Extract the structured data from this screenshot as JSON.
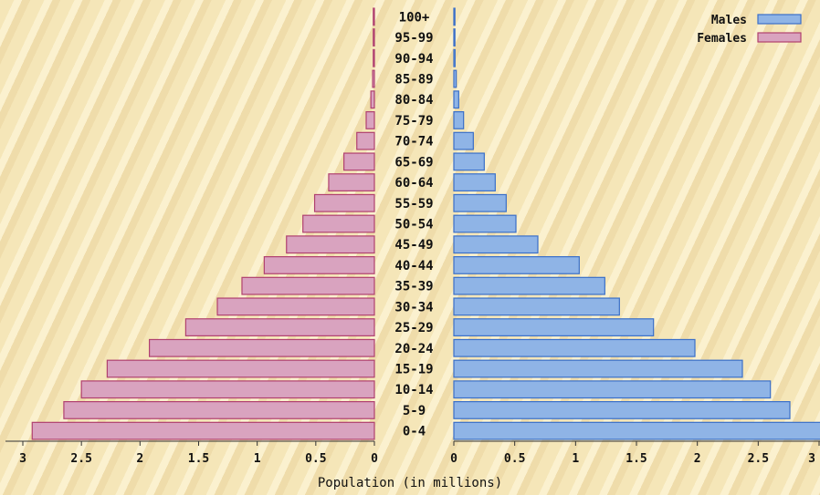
{
  "chart_data": {
    "type": "bar",
    "orientation": "horizontal-pyramid",
    "categories": [
      "0-4",
      "5-9",
      "10-14",
      "15-19",
      "20-24",
      "25-29",
      "30-34",
      "35-39",
      "40-44",
      "45-49",
      "50-54",
      "55-59",
      "60-64",
      "65-69",
      "70-74",
      "75-79",
      "80-84",
      "85-89",
      "90-94",
      "95-99",
      "100+"
    ],
    "series": [
      {
        "name": "Males",
        "color": "#8fb4e6",
        "edge": "#3a6fc8",
        "values": [
          3.02,
          2.76,
          2.6,
          2.37,
          1.98,
          1.64,
          1.36,
          1.24,
          1.03,
          0.69,
          0.51,
          0.43,
          0.34,
          0.25,
          0.16,
          0.08,
          0.04,
          0.02,
          0.01,
          0.005,
          0.002
        ]
      },
      {
        "name": "Females",
        "color": "#d9a3bf",
        "edge": "#b0406f",
        "values": [
          2.92,
          2.65,
          2.5,
          2.28,
          1.92,
          1.61,
          1.34,
          1.13,
          0.94,
          0.75,
          0.61,
          0.51,
          0.39,
          0.26,
          0.15,
          0.07,
          0.03,
          0.015,
          0.008,
          0.004,
          0.002
        ]
      }
    ],
    "xticks": [
      "3",
      "2.5",
      "2",
      "1.5",
      "1",
      "0.5",
      "0",
      "0",
      "0.5",
      "1",
      "1.5",
      "2",
      "2.5",
      "3"
    ],
    "xlabel": "Population (in millions)",
    "xlim": [
      0,
      3
    ],
    "legend": "top-right",
    "grid": false
  }
}
